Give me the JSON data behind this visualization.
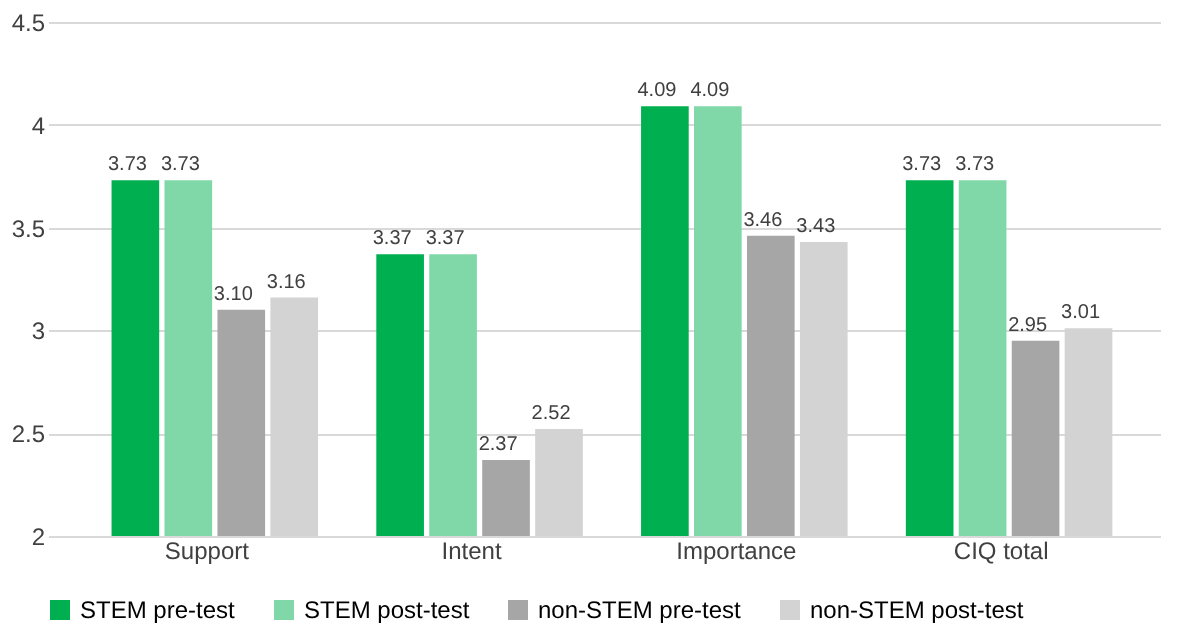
{
  "chart_data": {
    "type": "bar",
    "categories": [
      "Support",
      "Intent",
      "Importance",
      "CIQ total"
    ],
    "series": [
      {
        "name": "STEM pre-test",
        "color": "#00b050",
        "values": [
          3.73,
          3.37,
          4.09,
          3.73
        ],
        "value_labels": [
          "3.73",
          "3.37",
          "4.09",
          "3.73"
        ]
      },
      {
        "name": "STEM post-test",
        "color": "#80d8a8",
        "values": [
          3.73,
          3.37,
          4.09,
          3.73
        ],
        "value_labels": [
          "3.73",
          "3.37",
          "4.09",
          "3.73"
        ]
      },
      {
        "name": "non-STEM pre-test",
        "color": "#a6a6a6",
        "values": [
          3.1,
          2.37,
          3.46,
          2.95
        ],
        "value_labels": [
          "3.10",
          "2.37",
          "3.46",
          "2.95"
        ]
      },
      {
        "name": "non-STEM post-test",
        "color": "#d3d3d3",
        "values": [
          3.16,
          2.52,
          3.43,
          3.01
        ],
        "value_labels": [
          "3.16",
          "2.52",
          "3.43",
          "3.01"
        ]
      }
    ],
    "ylim": [
      2,
      4.5
    ],
    "yticks": [
      2,
      2.5,
      3,
      3.5,
      4,
      4.5
    ],
    "grid": "y",
    "legend": "bottom"
  }
}
